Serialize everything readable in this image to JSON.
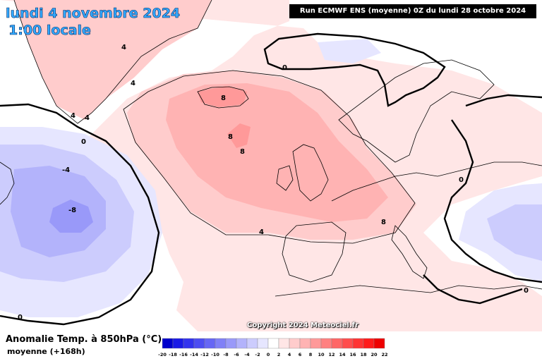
{
  "header": {
    "date": "lundi 4 novembre 2024",
    "time": "1:00 locale",
    "run": "Run ECMWF ENS (moyenne) 0Z du lundi 28 octobre 2024"
  },
  "copyright": "Copyright 2024 Meteociel.fr",
  "footer": {
    "title": "Anomalie Temp. à 850hPa (°C)",
    "subtitle": "moyenne   (+168h)"
  },
  "scale": {
    "labels": [
      "-20",
      "-18",
      "-16",
      "-14",
      "-12",
      "-10",
      "-8",
      "-6",
      "-4",
      "-2",
      "0",
      "2",
      "4",
      "6",
      "8",
      "10",
      "12",
      "14",
      "16",
      "18",
      "20",
      "22"
    ],
    "colors": [
      "#0000cc",
      "#1a1ae6",
      "#3333ee",
      "#4d4df2",
      "#6666f5",
      "#8080f7",
      "#9999f9",
      "#b3b3fb",
      "#ccccfd",
      "#e6e6ff",
      "#ffffff",
      "#ffe6e6",
      "#ffcccc",
      "#ffb3b3",
      "#ff9999",
      "#ff8080",
      "#ff6666",
      "#ff4d4d",
      "#ff3333",
      "#ff1a1a",
      "#ee0000"
    ]
  },
  "contour_labels": {
    "four_a": "4",
    "four_b": "4",
    "four_c": "4",
    "four_d": "4",
    "four_e": "4",
    "eight_a": "8",
    "eight_b": "8",
    "eight_c": "8",
    "eight_d": "8",
    "zero_a": "0",
    "zero_b": "0",
    "zero_c": "0",
    "zero_d": "0",
    "zero_e": "0",
    "minus4": "-4",
    "minus8": "-8"
  },
  "colors": {
    "sea": "#ffffff",
    "anom_plus2": "#ffe6e6",
    "anom_plus4": "#ffcccc",
    "anom_plus6": "#ffb3b3",
    "anom_plus8": "#ff9999",
    "anom_minus2": "#e6e6ff",
    "anom_minus4": "#ccccfd",
    "anom_minus6": "#b3b3fb",
    "anom_minus8": "#9999f9"
  }
}
